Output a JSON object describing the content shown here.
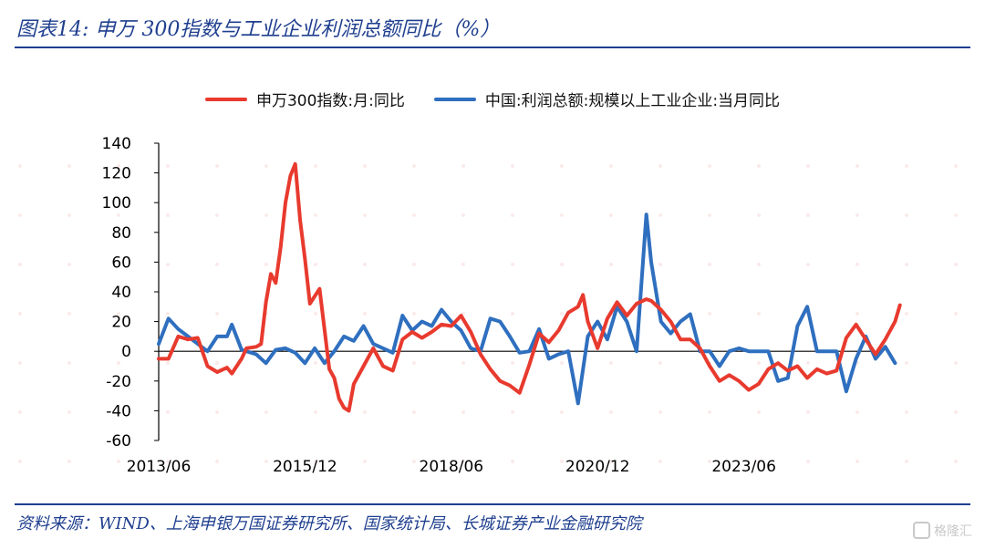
{
  "figure": {
    "title": "图表14:  申万 300指数与工业企业利润总额同比（%）",
    "source": "资料来源：WIND、上海申银万国证券研究所、国家统计局、长城证券产业金融研究院",
    "watermark": "格隆汇",
    "accent_color": "#1f3f8f"
  },
  "chart_data": {
    "type": "line",
    "title": "",
    "xlabel": "",
    "ylabel": "",
    "ylim": [
      -60,
      140
    ],
    "yticks": [
      140,
      120,
      100,
      80,
      60,
      40,
      20,
      0,
      -20,
      -40,
      -60
    ],
    "xlim": [
      "2013-06",
      "2025-09"
    ],
    "xticks": [
      {
        "date": "2013-06",
        "label": "2013/06"
      },
      {
        "date": "2015-12",
        "label": "2015/12"
      },
      {
        "date": "2018-06",
        "label": "2018/06"
      },
      {
        "date": "2020-12",
        "label": "2020/12"
      },
      {
        "date": "2023-06",
        "label": "2023/06"
      }
    ],
    "legend_position": "top",
    "series": [
      {
        "name": "申万300指数:月:同比",
        "color": "#e83a2e",
        "points": [
          [
            "2013-06",
            -5
          ],
          [
            "2013-08",
            -5
          ],
          [
            "2013-10",
            10
          ],
          [
            "2013-12",
            8
          ],
          [
            "2014-02",
            9
          ],
          [
            "2014-04",
            -10
          ],
          [
            "2014-06",
            -14
          ],
          [
            "2014-08",
            -11
          ],
          [
            "2014-09",
            -15
          ],
          [
            "2014-11",
            -5
          ],
          [
            "2014-12",
            2
          ],
          [
            "2015-02",
            3
          ],
          [
            "2015-03",
            5
          ],
          [
            "2015-04",
            33
          ],
          [
            "2015-05",
            52
          ],
          [
            "2015-06",
            46
          ],
          [
            "2015-07",
            70
          ],
          [
            "2015-08",
            100
          ],
          [
            "2015-09",
            118
          ],
          [
            "2015-10",
            126
          ],
          [
            "2015-11",
            88
          ],
          [
            "2015-12",
            62
          ],
          [
            "2016-01",
            32
          ],
          [
            "2016-03",
            42
          ],
          [
            "2016-05",
            -12
          ],
          [
            "2016-06",
            -18
          ],
          [
            "2016-07",
            -32
          ],
          [
            "2016-08",
            -38
          ],
          [
            "2016-09",
            -40
          ],
          [
            "2016-10",
            -22
          ],
          [
            "2016-12",
            -10
          ],
          [
            "2017-02",
            2
          ],
          [
            "2017-04",
            -10
          ],
          [
            "2017-06",
            -13
          ],
          [
            "2017-08",
            8
          ],
          [
            "2017-10",
            13
          ],
          [
            "2017-12",
            9
          ],
          [
            "2018-02",
            13
          ],
          [
            "2018-04",
            18
          ],
          [
            "2018-06",
            17
          ],
          [
            "2018-08",
            24
          ],
          [
            "2018-10",
            13
          ],
          [
            "2018-12",
            -2
          ],
          [
            "2019-02",
            -12
          ],
          [
            "2019-04",
            -20
          ],
          [
            "2019-06",
            -23
          ],
          [
            "2019-08",
            -28
          ],
          [
            "2019-10",
            -9
          ],
          [
            "2019-12",
            12
          ],
          [
            "2020-02",
            6
          ],
          [
            "2020-04",
            14
          ],
          [
            "2020-06",
            26
          ],
          [
            "2020-08",
            30
          ],
          [
            "2020-09",
            38
          ],
          [
            "2020-10",
            20
          ],
          [
            "2020-12",
            2
          ],
          [
            "2021-02",
            22
          ],
          [
            "2021-04",
            33
          ],
          [
            "2021-06",
            24
          ],
          [
            "2021-08",
            32
          ],
          [
            "2021-10",
            35
          ],
          [
            "2021-11",
            34
          ],
          [
            "2022-01",
            28
          ],
          [
            "2022-03",
            20
          ],
          [
            "2022-05",
            8
          ],
          [
            "2022-07",
            8
          ],
          [
            "2022-09",
            2
          ],
          [
            "2022-11",
            -10
          ],
          [
            "2023-01",
            -20
          ],
          [
            "2023-03",
            -16
          ],
          [
            "2023-05",
            -20
          ],
          [
            "2023-07",
            -26
          ],
          [
            "2023-09",
            -22
          ],
          [
            "2023-11",
            -12
          ],
          [
            "2024-01",
            -8
          ],
          [
            "2024-03",
            -13
          ],
          [
            "2024-05",
            -10
          ],
          [
            "2024-07",
            -18
          ],
          [
            "2024-09",
            -12
          ],
          [
            "2024-11",
            -15
          ],
          [
            "2025-01",
            -13
          ],
          [
            "2025-03",
            9
          ],
          [
            "2025-05",
            18
          ],
          [
            "2025-07",
            8
          ],
          [
            "2025-09",
            -2
          ],
          [
            "2025-11",
            8
          ],
          [
            "2026-01",
            20
          ],
          [
            "2026-02",
            31
          ]
        ]
      },
      {
        "name": "中国:利润总额:规模以上工业企业:当月同比",
        "color": "#2f6fbf",
        "points": [
          [
            "2013-06",
            5
          ],
          [
            "2013-08",
            22
          ],
          [
            "2013-10",
            15
          ],
          [
            "2013-12",
            10
          ],
          [
            "2014-02",
            5
          ],
          [
            "2014-04",
            0
          ],
          [
            "2014-06",
            10
          ],
          [
            "2014-08",
            10
          ],
          [
            "2014-09",
            18
          ],
          [
            "2014-11",
            1
          ],
          [
            "2014-12",
            0
          ],
          [
            "2015-02",
            -2
          ],
          [
            "2015-04",
            -8
          ],
          [
            "2015-06",
            1
          ],
          [
            "2015-08",
            2
          ],
          [
            "2015-10",
            -1
          ],
          [
            "2015-12",
            -8
          ],
          [
            "2016-02",
            2
          ],
          [
            "2016-04",
            -8
          ],
          [
            "2016-06",
            0
          ],
          [
            "2016-08",
            10
          ],
          [
            "2016-10",
            7
          ],
          [
            "2016-12",
            17
          ],
          [
            "2017-02",
            5
          ],
          [
            "2017-04",
            2
          ],
          [
            "2017-06",
            -1
          ],
          [
            "2017-08",
            24
          ],
          [
            "2017-10",
            14
          ],
          [
            "2017-12",
            20
          ],
          [
            "2018-02",
            17
          ],
          [
            "2018-04",
            28
          ],
          [
            "2018-06",
            20
          ],
          [
            "2018-08",
            14
          ],
          [
            "2018-10",
            2
          ],
          [
            "2018-12",
            0
          ],
          [
            "2019-02",
            22
          ],
          [
            "2019-04",
            20
          ],
          [
            "2019-06",
            10
          ],
          [
            "2019-08",
            -1
          ],
          [
            "2019-10",
            0
          ],
          [
            "2019-12",
            15
          ],
          [
            "2020-02",
            -5
          ],
          [
            "2020-04",
            -2
          ],
          [
            "2020-06",
            0
          ],
          [
            "2020-08",
            -35
          ],
          [
            "2020-10",
            10
          ],
          [
            "2020-12",
            20
          ],
          [
            "2021-02",
            8
          ],
          [
            "2021-04",
            30
          ],
          [
            "2021-06",
            20
          ],
          [
            "2021-08",
            0
          ],
          [
            "2021-10",
            92
          ],
          [
            "2021-11",
            60
          ],
          [
            "2022-01",
            20
          ],
          [
            "2022-03",
            12
          ],
          [
            "2022-05",
            20
          ],
          [
            "2022-07",
            25
          ],
          [
            "2022-09",
            0
          ],
          [
            "2022-11",
            0
          ],
          [
            "2023-01",
            -10
          ],
          [
            "2023-03",
            0
          ],
          [
            "2023-05",
            2
          ],
          [
            "2023-07",
            0
          ],
          [
            "2023-09",
            0
          ],
          [
            "2023-11",
            0
          ],
          [
            "2024-01",
            -20
          ],
          [
            "2024-03",
            -18
          ],
          [
            "2024-05",
            17
          ],
          [
            "2024-07",
            30
          ],
          [
            "2024-09",
            0
          ],
          [
            "2024-11",
            0
          ],
          [
            "2025-01",
            0
          ],
          [
            "2025-03",
            -27
          ],
          [
            "2025-05",
            -5
          ],
          [
            "2025-07",
            10
          ],
          [
            "2025-09",
            -5
          ],
          [
            "2025-11",
            3
          ],
          [
            "2026-01",
            -8
          ]
        ]
      }
    ]
  }
}
